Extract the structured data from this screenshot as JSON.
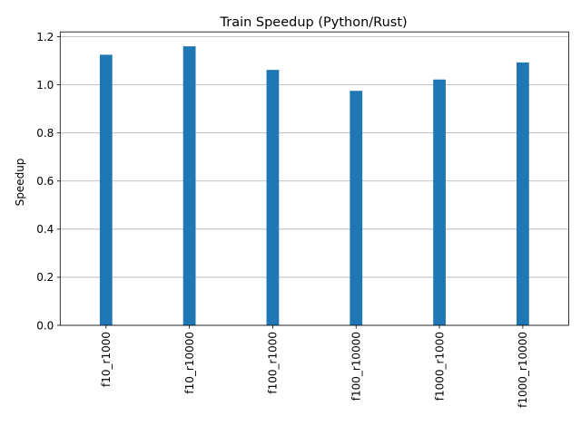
{
  "chart_data": {
    "type": "bar",
    "title": "Train Speedup (Python/Rust)",
    "xlabel": "",
    "ylabel": "Speedup",
    "categories": [
      "f10_r1000",
      "f10_r10000",
      "f100_r1000",
      "f100_r10000",
      "f1000_r1000",
      "f1000_r10000"
    ],
    "values": [
      1.125,
      1.16,
      1.062,
      0.975,
      1.022,
      1.093
    ],
    "ylim": [
      0,
      1.22
    ],
    "yticks": [
      0.0,
      0.2,
      0.4,
      0.6,
      0.8,
      1.0,
      1.2
    ],
    "ytick_labels": [
      "0.0",
      "0.2",
      "0.4",
      "0.6",
      "0.8",
      "1.0",
      "1.2"
    ],
    "grid": "y-major",
    "bar_color": "#1f77b4",
    "legend": "none"
  }
}
